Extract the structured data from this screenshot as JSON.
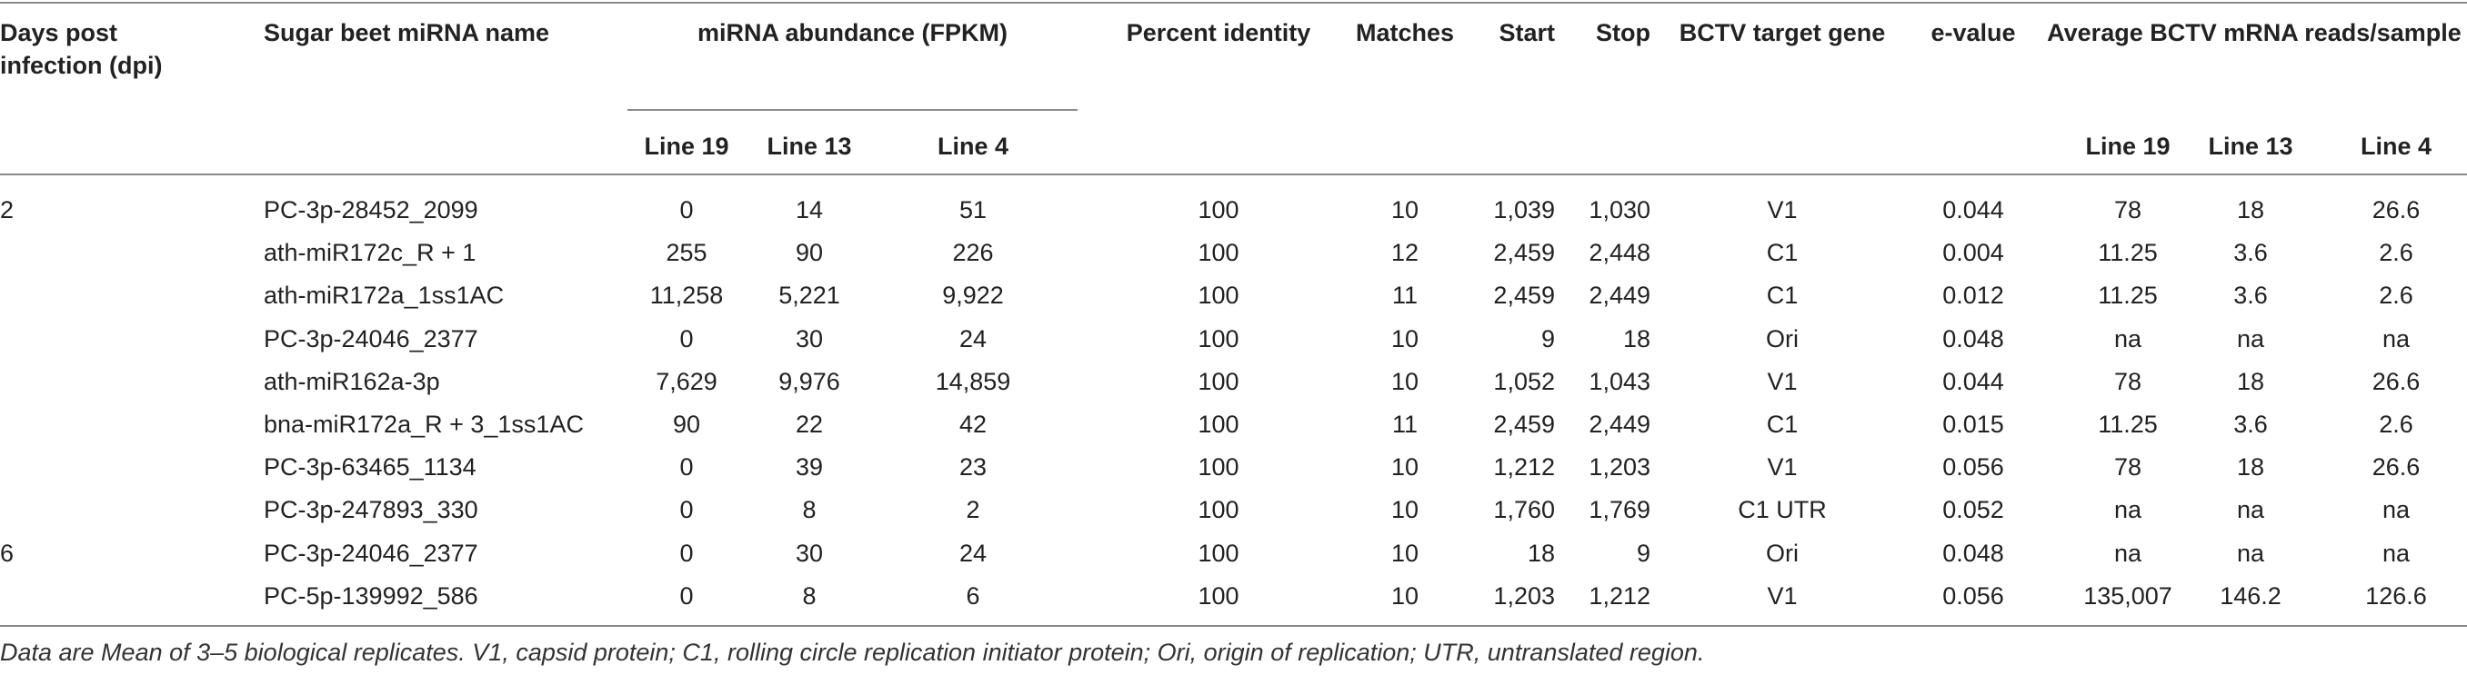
{
  "table": {
    "headers": {
      "dpi": "Days post infection (dpi)",
      "mirna_name": "Sugar beet miRNA name",
      "abundance_group": "miRNA abundance (FPKM)",
      "percent_identity": "Percent identity",
      "matches": "Matches",
      "start": "Start",
      "stop": "Stop",
      "target_gene": "BCTV target gene",
      "evalue": "e-value",
      "reads_group": "Average BCTV mRNA reads/sample",
      "line19": "Line 19",
      "line13": "Line 13",
      "line4": "Line 4"
    },
    "rows": [
      {
        "dpi": "2",
        "name": "PC-3p-28452_2099",
        "l19": "0",
        "l13": "14",
        "l4": "51",
        "pid": "100",
        "matches": "10",
        "start": "1,039",
        "stop": "1,030",
        "gene": "V1",
        "evalue": "0.044",
        "r19": "78",
        "r13": "18",
        "r4": "26.6"
      },
      {
        "dpi": "",
        "name": "ath-miR172c_R + 1",
        "l19": "255",
        "l13": "90",
        "l4": "226",
        "pid": "100",
        "matches": "12",
        "start": "2,459",
        "stop": "2,448",
        "gene": "C1",
        "evalue": "0.004",
        "r19": "11.25",
        "r13": "3.6",
        "r4": "2.6"
      },
      {
        "dpi": "",
        "name": "ath-miR172a_1ss1AC",
        "l19": "11,258",
        "l13": "5,221",
        "l4": "9,922",
        "pid": "100",
        "matches": "11",
        "start": "2,459",
        "stop": "2,449",
        "gene": "C1",
        "evalue": "0.012",
        "r19": "11.25",
        "r13": "3.6",
        "r4": "2.6"
      },
      {
        "dpi": "",
        "name": "PC-3p-24046_2377",
        "l19": "0",
        "l13": "30",
        "l4": "24",
        "pid": "100",
        "matches": "10",
        "start": "9",
        "stop": "18",
        "gene": "Ori",
        "evalue": "0.048",
        "r19": "na",
        "r13": "na",
        "r4": "na"
      },
      {
        "dpi": "",
        "name": "ath-miR162a-3p",
        "l19": "7,629",
        "l13": "9,976",
        "l4": "14,859",
        "pid": "100",
        "matches": "10",
        "start": "1,052",
        "stop": "1,043",
        "gene": "V1",
        "evalue": "0.044",
        "r19": "78",
        "r13": "18",
        "r4": "26.6"
      },
      {
        "dpi": "",
        "name": "bna-miR172a_R + 3_1ss1AC",
        "l19": "90",
        "l13": "22",
        "l4": "42",
        "pid": "100",
        "matches": "11",
        "start": "2,459",
        "stop": "2,449",
        "gene": "C1",
        "evalue": "0.015",
        "r19": "11.25",
        "r13": "3.6",
        "r4": "2.6"
      },
      {
        "dpi": "",
        "name": "PC-3p-63465_1134",
        "l19": "0",
        "l13": "39",
        "l4": "23",
        "pid": "100",
        "matches": "10",
        "start": "1,212",
        "stop": "1,203",
        "gene": "V1",
        "evalue": "0.056",
        "r19": "78",
        "r13": "18",
        "r4": "26.6"
      },
      {
        "dpi": "",
        "name": "PC-3p-247893_330",
        "l19": "0",
        "l13": "8",
        "l4": "2",
        "pid": "100",
        "matches": "10",
        "start": "1,760",
        "stop": "1,769",
        "gene": "C1 UTR",
        "evalue": "0.052",
        "r19": "na",
        "r13": "na",
        "r4": "na"
      },
      {
        "dpi": "6",
        "name": "PC-3p-24046_2377",
        "l19": "0",
        "l13": "30",
        "l4": "24",
        "pid": "100",
        "matches": "10",
        "start": "18",
        "stop": "9",
        "gene": "Ori",
        "evalue": "0.048",
        "r19": "na",
        "r13": "na",
        "r4": "na"
      },
      {
        "dpi": "",
        "name": "PC-5p-139992_586",
        "l19": "0",
        "l13": "8",
        "l4": "6",
        "pid": "100",
        "matches": "10",
        "start": "1,203",
        "stop": "1,212",
        "gene": "V1",
        "evalue": "0.056",
        "r19": "135,007",
        "r13": "146.2",
        "r4": "126.6"
      }
    ],
    "footnote": "Data are Mean of 3–5 biological replicates. V1, capsid protein; C1, rolling circle replication initiator protein; Ori, origin of replication; UTR, untranslated region."
  }
}
